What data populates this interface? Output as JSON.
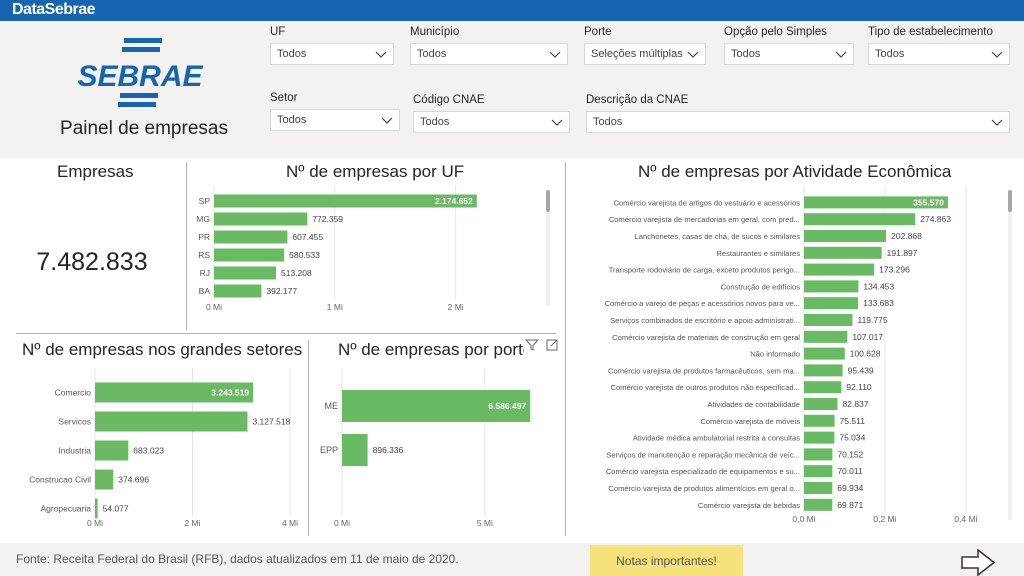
{
  "brand": "DataSebrae",
  "logo_text": "SEBRAE",
  "panel_title": "Painel de empresas",
  "filters": [
    {
      "label": "UF",
      "value": "Todos"
    },
    {
      "label": "Município",
      "value": "Todos"
    },
    {
      "label": "Porte",
      "value": "Seleções múltiplas"
    },
    {
      "label": "Opção pelo Simples",
      "value": "Todos"
    },
    {
      "label": "Tipo de estabelecimento",
      "value": "Todos"
    },
    {
      "label": "Setor",
      "value": "Todos"
    },
    {
      "label": "Código CNAE",
      "value": "Todos"
    },
    {
      "label": "Descrição da CNAE",
      "value": "Todos"
    }
  ],
  "kpi": {
    "label": "Empresas",
    "value": "7.482.833"
  },
  "bar_color": "#6ab963",
  "footer": {
    "source": "Fonte: Receita Federal do Brasil (RFB), dados atualizados em 11 de maio de 2020.",
    "notes_label": "Notas importantes!"
  },
  "chart_data": [
    {
      "id": "uf",
      "type": "bar",
      "orientation": "horizontal",
      "title": "Nº de empresas por UF",
      "categories": [
        "SP",
        "MG",
        "PR",
        "RS",
        "RJ",
        "BA"
      ],
      "values": [
        2174652,
        772359,
        607455,
        580533,
        513208,
        392177
      ],
      "labels": [
        "2.174.652",
        "772.359",
        "607.455",
        "580.533",
        "513.208",
        "392.177"
      ],
      "xlim": [
        0,
        2400000
      ],
      "ticks": [
        0,
        1000000,
        2000000
      ],
      "tick_labels": [
        "0 Mi",
        "1 Mi",
        "2 Mi"
      ]
    },
    {
      "id": "setores",
      "type": "bar",
      "orientation": "horizontal",
      "title": "Nº de empresas nos grandes setores",
      "categories": [
        "Comercio",
        "Servicos",
        "Industria",
        "Construcao Civil",
        "Agropecuaria"
      ],
      "values": [
        3243519,
        3127518,
        683023,
        374696,
        54077
      ],
      "labels": [
        "3.243.519",
        "3.127.518",
        "683.023",
        "374.696",
        "54.077"
      ],
      "xlim": [
        0,
        4000000
      ],
      "ticks": [
        0,
        2000000,
        4000000
      ],
      "tick_labels": [
        "0 Mi",
        "2 Mi",
        "4 Mi"
      ]
    },
    {
      "id": "porte",
      "type": "bar",
      "orientation": "horizontal",
      "title": "Nº de empresas por porte",
      "categories": [
        "ME",
        "EPP"
      ],
      "values": [
        6586497,
        896336
      ],
      "labels": [
        "6.586.497",
        "896.336"
      ],
      "xlim": [
        0,
        7000000
      ],
      "ticks": [
        0,
        5000000
      ],
      "tick_labels": [
        "0 Mi",
        "5 Mi"
      ]
    },
    {
      "id": "atividade",
      "type": "bar",
      "orientation": "horizontal",
      "title": "Nº de empresas por Atividade Econômica",
      "categories": [
        "Comércio varejista de artigos do vestuário e acessórios",
        "Comércio varejista de mercadorias em geral, com pred...",
        "Lanchonetes, casas de chá, de sucos e similares",
        "Restaurantes e similares",
        "Transporte rodoviário de carga, exceto produtos perigo...",
        "Construção de edifícios",
        "Comércio a varejo de peças e acessórios novos para ve...",
        "Serviços combinados de escritório e apoio administrati...",
        "Comércio varejista de materiais de construção em geral",
        "Não informado",
        "Comércio varejista de produtos farmacêuticos, sem ma...",
        "Comércio varejista de outros produtos não especificad...",
        "Atividades de contabilidade",
        "Comércio varejista de móveis",
        "Atividade médica ambulatorial restrita a consultas",
        "Serviços de manutenção e reparação mecânica de veíc...",
        "Comércio varejista especializado de equipamentos e su...",
        "Comércio varejista de produtos alimentícios em geral o...",
        "Comércio varejista de bebidas"
      ],
      "values": [
        355570,
        274863,
        202868,
        191897,
        173296,
        134453,
        133683,
        119775,
        107017,
        100628,
        95439,
        92110,
        82837,
        75511,
        75034,
        70152,
        70011,
        69934,
        69871
      ],
      "labels": [
        "355.570",
        "274.863",
        "202.868",
        "191.897",
        "173.296",
        "134.453",
        "133.683",
        "119.775",
        "107.017",
        "100.628",
        "95.439",
        "92.110",
        "82.837",
        "75.511",
        "75.034",
        "70.152",
        "70.011",
        "69.934",
        "69.871"
      ],
      "xlim": [
        0,
        420000
      ],
      "ticks": [
        0,
        200000,
        400000
      ],
      "tick_labels": [
        "0,0 Mi",
        "0,2 Mi",
        "0,4 Mi"
      ]
    }
  ]
}
